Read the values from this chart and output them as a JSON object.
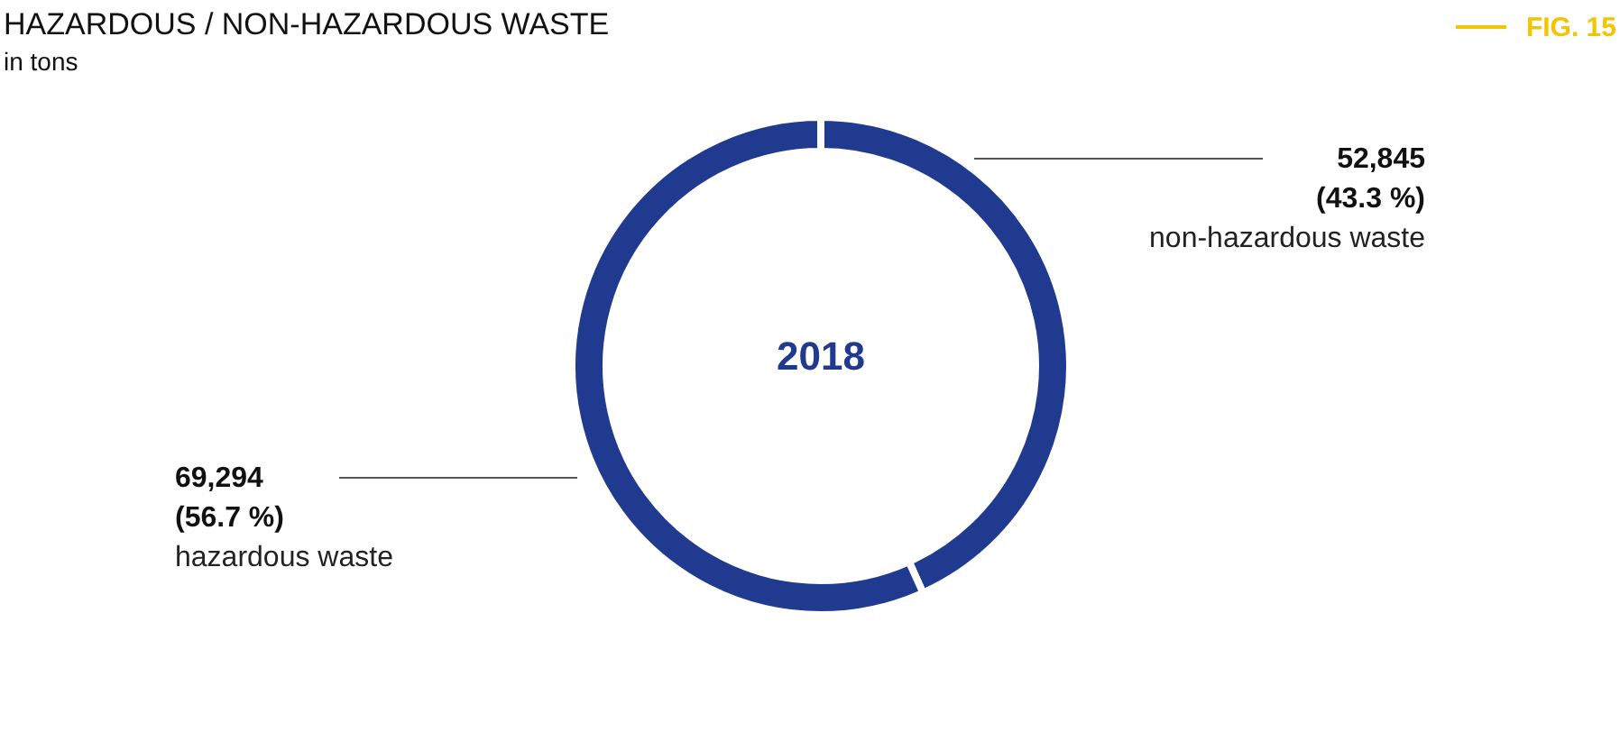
{
  "chart_data": {
    "type": "donut",
    "title": "HAZARDOUS / NON-HAZARDOUS WASTE",
    "subtitle": "in tons",
    "categories": [
      "non-hazardous waste",
      "hazardous waste"
    ],
    "values": [
      52845,
      69294
    ],
    "value_labels": [
      "52,845\n(43.3 %)",
      "69,294\n(56.7 %)"
    ],
    "colors": [
      "#1f3a8f",
      "#1f3a8f"
    ],
    "annotations": [
      "2018",
      "FIG. 15"
    ]
  }
}
